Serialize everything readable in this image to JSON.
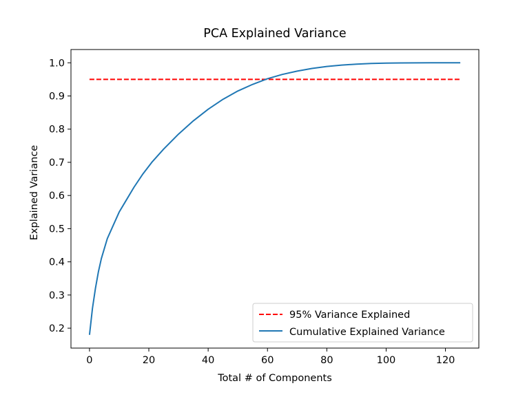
{
  "chart_data": {
    "type": "line",
    "title": "PCA Explained Variance",
    "xlabel": "Total # of Components",
    "ylabel": "Explained Variance",
    "xlim": [
      -6.25,
      131.25
    ],
    "ylim": [
      0.14,
      1.04
    ],
    "xticks": [
      0,
      20,
      40,
      60,
      80,
      100,
      120
    ],
    "yticks": [
      0.2,
      0.3,
      0.4,
      0.5,
      0.6,
      0.7,
      0.8,
      0.9,
      1.0
    ],
    "xtick_labels": [
      "0",
      "20",
      "40",
      "60",
      "80",
      "100",
      "120"
    ],
    "ytick_labels": [
      "0.2",
      "0.3",
      "0.4",
      "0.5",
      "0.6",
      "0.7",
      "0.8",
      "0.9",
      "1.0"
    ],
    "grid": false,
    "legend_position": "lower-right",
    "series": [
      {
        "name": "95% Variance Explained",
        "style": "dashed",
        "color": "#ff0000",
        "x": [
          0,
          125
        ],
        "y": [
          0.95,
          0.95
        ]
      },
      {
        "name": "Cumulative Explained Variance",
        "style": "solid",
        "color": "#1f77b4",
        "x": [
          0,
          1,
          2,
          3,
          4,
          5,
          6,
          8,
          10,
          12,
          15,
          18,
          21,
          25,
          30,
          35,
          40,
          45,
          50,
          55,
          60,
          65,
          70,
          75,
          80,
          85,
          90,
          95,
          100,
          105,
          110,
          115,
          120,
          125
        ],
        "y": [
          0.18,
          0.26,
          0.32,
          0.37,
          0.41,
          0.44,
          0.47,
          0.51,
          0.55,
          0.58,
          0.625,
          0.665,
          0.7,
          0.74,
          0.785,
          0.825,
          0.86,
          0.89,
          0.915,
          0.935,
          0.952,
          0.965,
          0.975,
          0.983,
          0.989,
          0.993,
          0.996,
          0.998,
          0.999,
          0.9995,
          0.9998,
          1.0,
          1.0,
          1.0
        ]
      }
    ]
  }
}
